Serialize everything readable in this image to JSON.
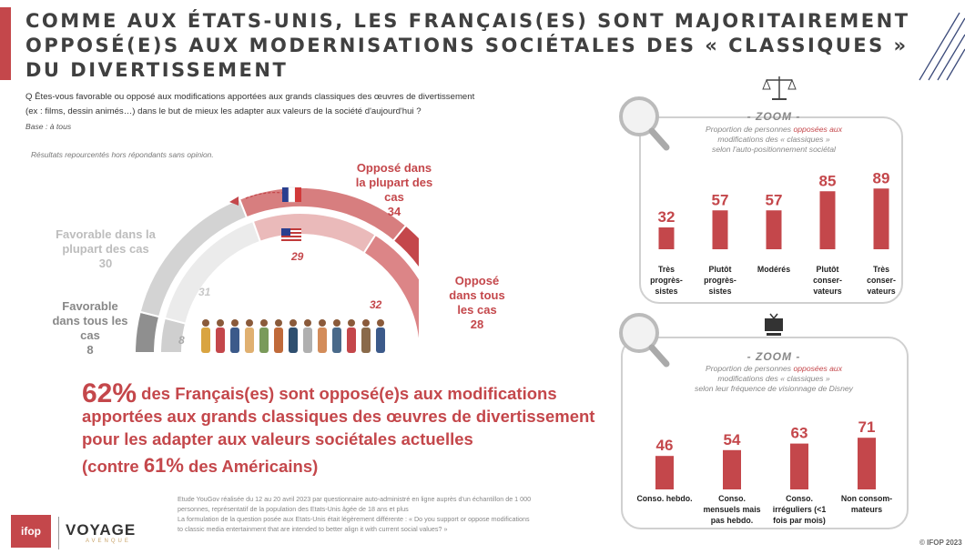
{
  "title": "COMME AUX ÉTATS-UNIS, LES FRANÇAIS(ES) SONT MAJORITAIREMENT OPPOSÉ(E)S AUX MODERNISATIONS SOCIÉTALES DES « CLASSIQUES » DU DIVERTISSEMENT",
  "question": {
    "line1": "Q Êtes-vous favorable ou opposé aux modifications apportées aux grands classiques des œuvres de divertissement",
    "line2": "(ex : films, dessin animés…) dans le but de mieux les adapter aux valeurs de la société d'aujourd'hui ?",
    "base": "Base : à tous"
  },
  "note": "Résultats repourcentés hors répondants sans opinion.",
  "chart_data": [
    {
      "type": "semi-donut",
      "categories": [
        "Favorable dans tous les cas",
        "Favorable dans la plupart des cas",
        "Opposé dans la plupart des cas",
        "Opposé dans tous les cas"
      ],
      "series": [
        {
          "name": "France",
          "values": [
            8,
            30,
            34,
            28
          ]
        },
        {
          "name": "États-Unis",
          "values": [
            8,
            31,
            29,
            32
          ]
        }
      ],
      "colors": [
        "#8f8f8f",
        "#d3d3d3",
        "#d77e7f",
        "#c4474b"
      ]
    },
    {
      "type": "bar",
      "zoom": "- ZOOM -",
      "subtitle_l1_pre": "Proportion de personnes ",
      "subtitle_l1_hl": "opposées aux",
      "subtitle_l2": "modifications des « classiques »",
      "subtitle_l3": "selon l'auto-positionnement sociétal",
      "categories": [
        "Très progrès-sistes",
        "Plutôt progrès-sistes",
        "Modérés",
        "Plutôt conser-vateurs",
        "Très conser-vateurs"
      ],
      "category_lines": [
        [
          "Très",
          "progrès-",
          "sistes"
        ],
        [
          "Plutôt",
          "progrès-",
          "sistes"
        ],
        [
          "Modérés"
        ],
        [
          "Plutôt",
          "conser-",
          "vateurs"
        ],
        [
          "Très",
          "conser-",
          "vateurs"
        ]
      ],
      "values": [
        32,
        57,
        57,
        85,
        89
      ],
      "ylim": [
        0,
        100
      ],
      "color": "#c4474b"
    },
    {
      "type": "bar",
      "zoom": "- ZOOM -",
      "subtitle_l1_pre": "Proportion de personnes ",
      "subtitle_l1_hl": "opposées aux",
      "subtitle_l2": "modifications des « classiques »",
      "subtitle_l3": "selon leur fréquence de visionnage de Disney",
      "categories": [
        "Conso. hebdo.",
        "Conso. mensuels mais pas hebdo.",
        "Conso. irréguliers (<1 fois par mois)",
        "Non consom-mateurs"
      ],
      "category_lines": [
        [
          "Conso. hebdo."
        ],
        [
          "Conso.",
          "mensuels mais",
          "pas hebdo."
        ],
        [
          "Conso.",
          "irréguliers (<1",
          "fois par mois)"
        ],
        [
          "Non consom-",
          "mateurs"
        ]
      ],
      "values": [
        46,
        54,
        63,
        71
      ],
      "ylim": [
        0,
        100
      ],
      "color": "#c4474b"
    }
  ],
  "donut_labels": {
    "fav_all": [
      "Favorable",
      "dans tous les",
      "cas"
    ],
    "fav_all_val": "8",
    "fav_most": [
      "Favorable dans la",
      "plupart des cas"
    ],
    "fav_most_val": "30",
    "opp_most": [
      "Opposé dans",
      "la plupart des",
      "cas"
    ],
    "opp_most_val": "34",
    "opp_all": [
      "Opposé",
      "dans tous",
      "les cas"
    ],
    "opp_all_val": "28",
    "us_vals": [
      "8",
      "31",
      "29",
      "32"
    ]
  },
  "headline": {
    "pct": "62%",
    "l1": " des Français(es) sont opposé(e)s aux modifications",
    "l2": "apportées aux grands classiques des œuvres de divertissement",
    "l3": "pour les adapter aux valeurs sociétales actuelles",
    "l4_pre": "(contre ",
    "l4_pct": "61%",
    "l4_post": " des Américains)"
  },
  "source": {
    "l1": "Etude YouGov réalisée du 12 au 20 avril 2023 par questionnaire auto-administré en ligne auprès d'un échantillon de 1 000",
    "l2": "personnes, représentatif de la population des Etats-Unis âgée de 18 ans et plus",
    "l3": "La formulation de la question posée aux Etats-Unis était légèrement différente : « Do you support or oppose modifications",
    "l4": "to classic media entertainment that are intended to better align it with current social values? »"
  },
  "footer": "© IFOP 2023",
  "logos": {
    "ifop": "ifop",
    "voyage": "VOYAGE",
    "voyage_sub": "AVENQUE"
  }
}
